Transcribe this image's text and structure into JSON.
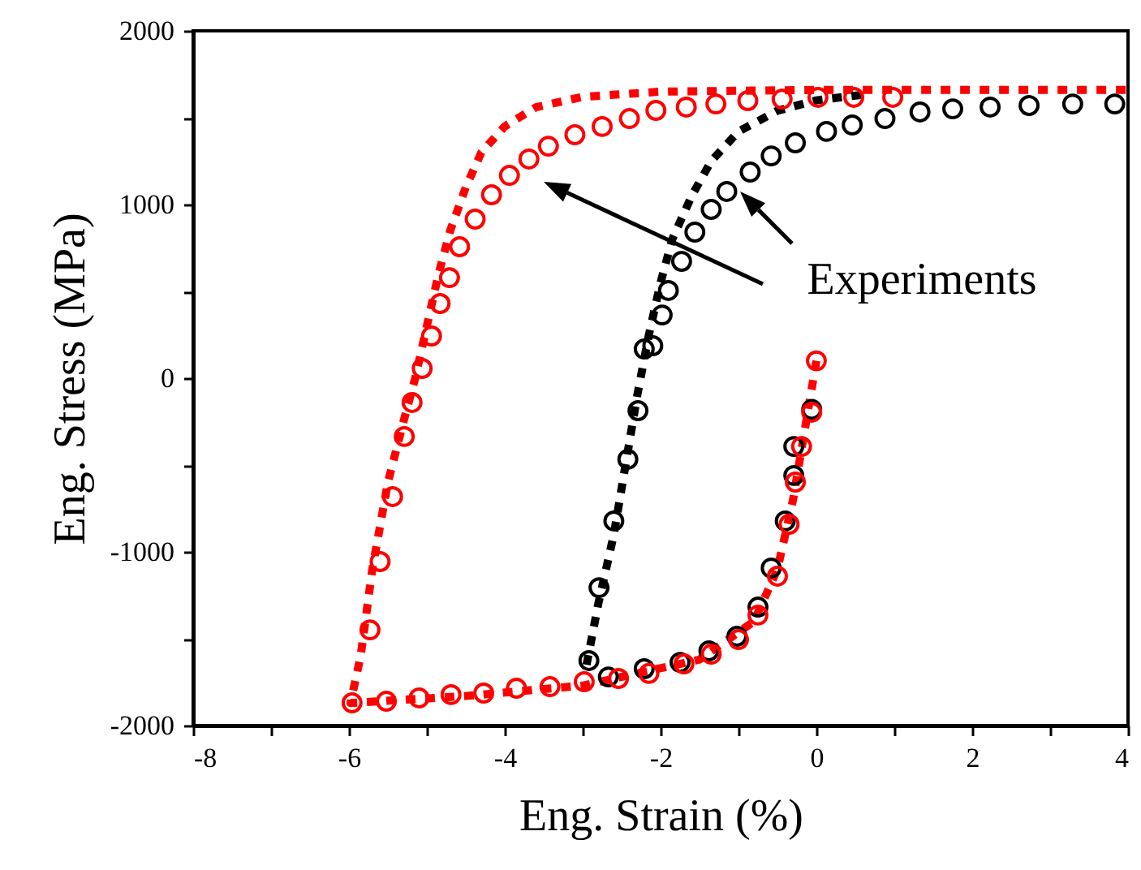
{
  "chart_data": {
    "type": "scatter",
    "xlabel": "Eng. Strain (%)",
    "ylabel": "Eng. Stress (MPa)",
    "xlim": [
      -8,
      4
    ],
    "ylim": [
      -2000,
      2000
    ],
    "xticks": [
      -8,
      {
        "value": -7,
        "label": null
      },
      -6,
      {
        "value": -5,
        "label": null
      },
      -4,
      {
        "value": -3,
        "label": null
      },
      -2,
      {
        "value": -1,
        "label": null
      },
      0,
      {
        "value": 1,
        "label": null
      },
      2,
      {
        "value": 3,
        "label": null
      },
      4
    ],
    "yticks": [
      -2000,
      {
        "value": -1500,
        "label": null
      },
      -1000,
      {
        "value": -500,
        "label": null
      },
      0,
      {
        "value": 500,
        "label": null
      },
      1000,
      {
        "value": 1500,
        "label": null
      },
      2000
    ],
    "grid": false,
    "annotations": [
      "Experiments"
    ],
    "series": [
      {
        "type": "line",
        "color": "#ff0000",
        "line_style": "dashed",
        "marker": "none",
        "x": [
          0,
          -0.15,
          -0.3,
          -0.5,
          -0.8,
          -1.5,
          -3,
          -4.5,
          -5.98,
          -5.85,
          -5.7,
          -5.5,
          -5.3,
          -5.15,
          -5,
          -4.85,
          -4.7,
          -4.5,
          -4.3,
          -4,
          -3.6,
          -3,
          -2,
          0,
          4
        ],
        "values": [
          100,
          -300,
          -700,
          -1100,
          -1400,
          -1620,
          -1770,
          -1830,
          -1870,
          -1600,
          -1100,
          -600,
          -250,
          0,
          300,
          600,
          850,
          1100,
          1300,
          1450,
          1560,
          1620,
          1650,
          1660,
          1660
        ]
      },
      {
        "type": "line",
        "color": "#000000",
        "line_style": "dashed",
        "marker": "none",
        "x": [
          -2.95,
          -2.8,
          -2.6,
          -2.45,
          -2.3,
          -2.15,
          -2,
          -1.85,
          -1.6,
          -1.35,
          -1,
          -0.5,
          0,
          0.65
        ],
        "values": [
          -1650,
          -1300,
          -900,
          -500,
          -100,
          250,
          550,
          800,
          1050,
          1250,
          1420,
          1540,
          1600,
          1635
        ]
      },
      {
        "type": "scatter",
        "color": "#000000",
        "marker": "circle",
        "x": [
          -0.06,
          -0.29,
          -0.29,
          -0.4,
          -0.58,
          -0.75,
          -1.02,
          -1.38,
          -1.75,
          -2.21,
          -2.67,
          -2.92,
          -2.79,
          -2.6,
          -2.42,
          -2.29,
          -2.21,
          -2.1,
          -1.98,
          -1.9,
          -1.73,
          -1.56,
          -1.35,
          -1.15,
          -0.85,
          -0.58,
          -0.27,
          0.13,
          0.46,
          0.88,
          1.33,
          1.75,
          2.23,
          2.73,
          3.29,
          3.83
        ],
        "values": [
          -180,
          -393,
          -560,
          -822,
          -1093,
          -1318,
          -1486,
          -1570,
          -1636,
          -1673,
          -1720,
          -1626,
          -1206,
          -822,
          -467,
          -187,
          168,
          187,
          364,
          505,
          673,
          841,
          972,
          1075,
          1187,
          1280,
          1355,
          1421,
          1458,
          1495,
          1533,
          1551,
          1561,
          1570,
          1579,
          1579
        ]
      },
      {
        "type": "scatter",
        "color": "#ff0000",
        "marker": "circle",
        "x": [
          0,
          -0.06,
          -0.19,
          -0.27,
          -0.35,
          -0.5,
          -0.75,
          -1,
          -1.35,
          -1.7,
          -2.15,
          -2.54,
          -2.98,
          -3.42,
          -3.85,
          -4.27,
          -4.69,
          -5.1,
          -5.52,
          -5.96,
          -5.73,
          -5.6,
          -5.44,
          -5.29,
          -5.19,
          -5.06,
          -4.94,
          -4.83,
          -4.71,
          -4.58,
          -4.38,
          -4.17,
          -3.94,
          -3.69,
          -3.44,
          -3.1,
          -2.75,
          -2.4,
          -2.06,
          -1.67,
          -1.29,
          -0.88,
          -0.44,
          0.02,
          0.48,
          0.98
        ],
        "values": [
          100,
          -196,
          -393,
          -598,
          -841,
          -1140,
          -1364,
          -1505,
          -1589,
          -1645,
          -1700,
          -1729,
          -1748,
          -1776,
          -1785,
          -1813,
          -1822,
          -1841,
          -1860,
          -1869,
          -1449,
          -1056,
          -682,
          -336,
          -140,
          56,
          243,
          430,
          579,
          757,
          916,
          1056,
          1168,
          1262,
          1336,
          1402,
          1449,
          1495,
          1542,
          1561,
          1579,
          1598,
          1607,
          1617,
          1617,
          1617
        ]
      }
    ]
  }
}
